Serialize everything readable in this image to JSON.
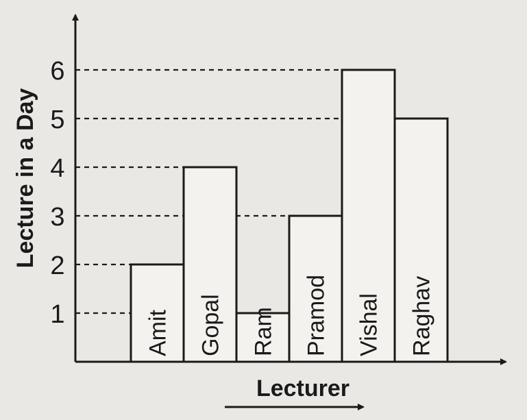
{
  "chart_data": {
    "type": "bar",
    "title": "",
    "xlabel": "Lecturer",
    "ylabel": "Lecture in a Day",
    "categories": [
      "Amit",
      "Gopal",
      "Ram",
      "Pramod",
      "Vishal",
      "Raghav"
    ],
    "values": [
      2,
      4,
      1,
      3,
      6,
      5
    ],
    "yticks": [
      1,
      2,
      3,
      4,
      5,
      6
    ],
    "ylim": [
      0,
      6
    ],
    "grid": false,
    "dashed_guides": true,
    "bar_labels": "inside-vertical",
    "colors": {
      "bar_fill": "#f3f2ee",
      "stroke": "#1a1a1a",
      "background": "#e9e8e4"
    }
  }
}
